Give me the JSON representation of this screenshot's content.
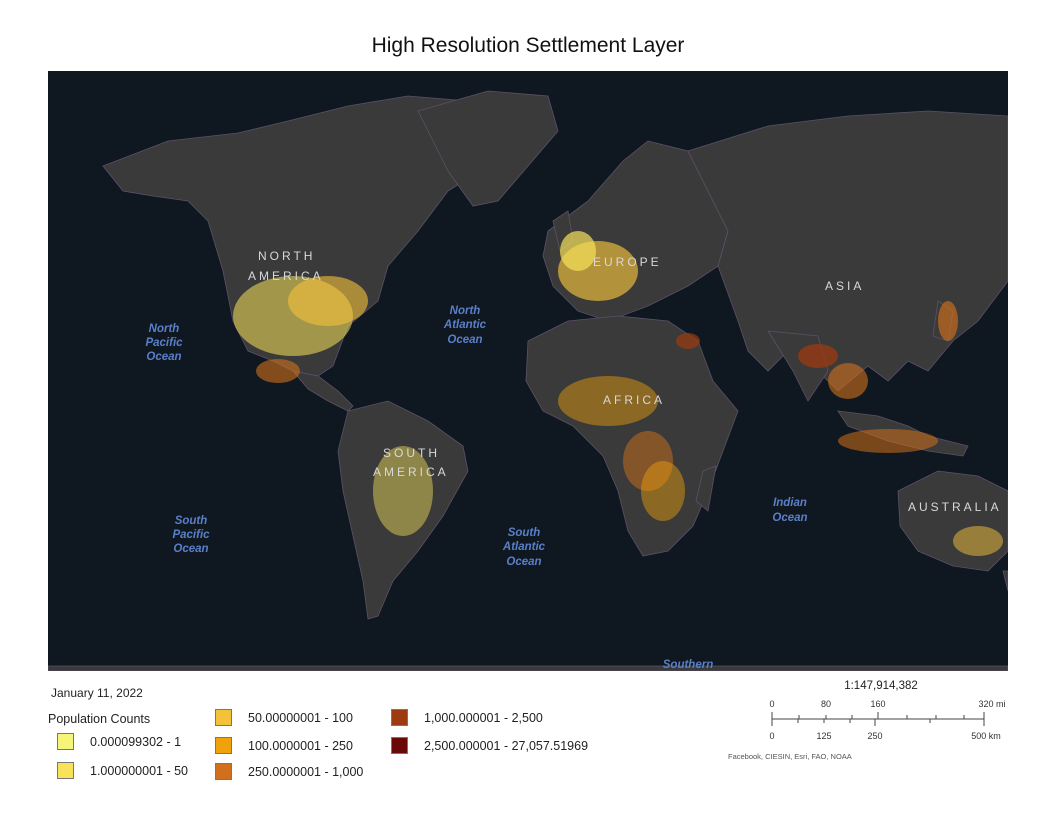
{
  "map": {
    "title": "High Resolution Settlement Layer",
    "date": "January 11, 2022",
    "continents": [
      "NORTH AMERICA",
      "SOUTH AMERICA",
      "EUROPE",
      "AFRICA",
      "ASIA",
      "AUSTRALIA"
    ],
    "labels": {
      "north_america_1": "NORTH",
      "north_america_2": "AMERICA",
      "south_america_1": "SOUTH",
      "south_america_2": "AMERICA",
      "europe": "EUROPE",
      "africa": "AFRICA",
      "asia": "ASIA",
      "australia": "AUSTRALIA",
      "north_pacific": [
        "North",
        "Pacific",
        "Ocean"
      ],
      "north_atlantic": [
        "North",
        "Atlantic",
        "Ocean"
      ],
      "south_pacific": [
        "South",
        "Pacific",
        "Ocean"
      ],
      "south_atlantic": [
        "South",
        "Atlantic",
        "Ocean"
      ],
      "indian": [
        "Indian",
        "Ocean"
      ],
      "southern": "Southern"
    },
    "colors": {
      "ocean": "#0f1820",
      "land": "#3a3a3a",
      "border": "#6b5a7a",
      "ocean_label": "#5a7fc8"
    }
  },
  "legend": {
    "title": "Population Counts",
    "classes": [
      {
        "label": "0.000099302 - 1",
        "color": "#f5f57a"
      },
      {
        "label": "1.000000001 - 50",
        "color": "#f7e25a"
      },
      {
        "label": "50.00000001 - 100",
        "color": "#f3c23a"
      },
      {
        "label": "100.0000001 - 250",
        "color": "#f0a20c"
      },
      {
        "label": "250.0000001 - 1,000",
        "color": "#d0701a"
      },
      {
        "label": "1,000.000001 - 2,500",
        "color": "#9c3a10"
      },
      {
        "label": "2,500.000001 - 27,057.51969",
        "color": "#6a0808"
      }
    ]
  },
  "scale": {
    "ratio": "1:147,914,382",
    "miles": [
      "0",
      "80",
      "160",
      "320 mi"
    ],
    "km": [
      "0",
      "125",
      "250",
      "500 km"
    ]
  },
  "credits": "Facebook, CIESIN, Esri, FAO, NOAA"
}
